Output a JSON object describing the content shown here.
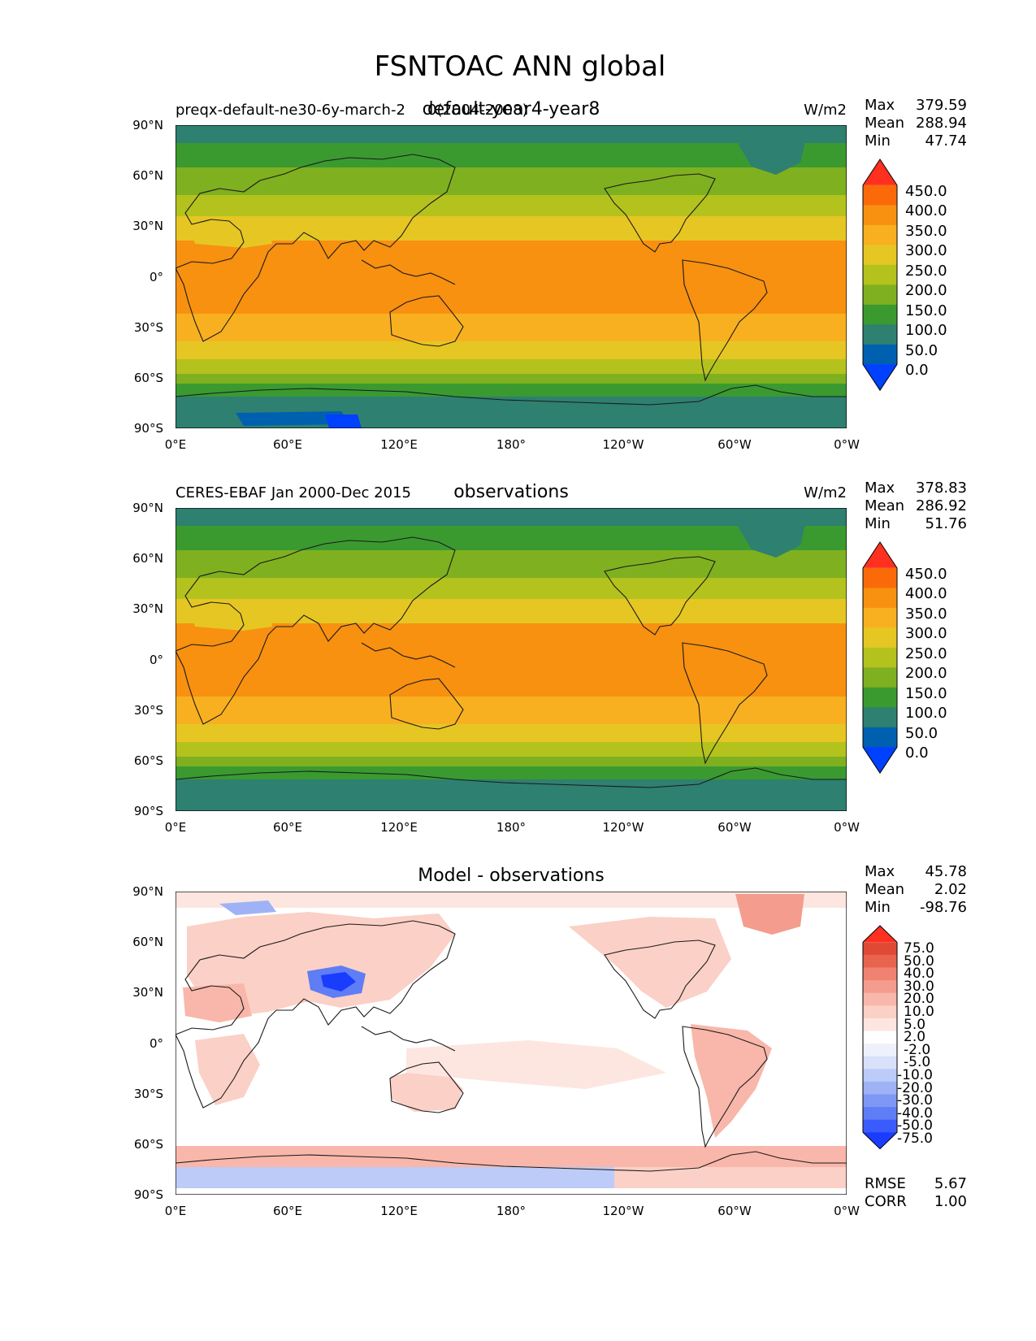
{
  "figure_title": "FSNTOAC ANN global",
  "panels": [
    {
      "id": "model",
      "left_label": "preqx-default-ne30-6y-march-2",
      "left_label_overlap": "0(2004-2008)",
      "center_title": "default-year4-year8",
      "units": "W/m2",
      "stats": {
        "max_label": "Max",
        "max": "379.59",
        "mean_label": "Mean",
        "mean": "288.94",
        "min_label": "Min",
        "min": "47.74"
      },
      "colorbar_labels": [
        "450.0",
        "400.0",
        "350.0",
        "300.0",
        "250.0",
        "200.0",
        "150.0",
        "100.0",
        "50.0",
        "0.0"
      ]
    },
    {
      "id": "obs",
      "left_label": "CERES-EBAF Jan 2000-Dec 2015",
      "center_title": "observations",
      "units": "W/m2",
      "stats": {
        "max_label": "Max",
        "max": "378.83",
        "mean_label": "Mean",
        "mean": "286.92",
        "min_label": "Min",
        "min": "51.76"
      },
      "colorbar_labels": [
        "450.0",
        "400.0",
        "350.0",
        "300.0",
        "250.0",
        "200.0",
        "150.0",
        "100.0",
        "50.0",
        "0.0"
      ]
    },
    {
      "id": "diff",
      "center_title": "Model - observations",
      "stats": {
        "max_label": "Max",
        "max": "45.78",
        "mean_label": "Mean",
        "mean": "2.02",
        "min_label": "Min",
        "min": "-98.76"
      },
      "colorbar_labels": [
        "75.0",
        "50.0",
        "40.0",
        "30.0",
        "20.0",
        "10.0",
        "5.0",
        "2.0",
        "-2.0",
        "-5.0",
        "-10.0",
        "-20.0",
        "-30.0",
        "-40.0",
        "-50.0",
        "-75.0"
      ],
      "rmse_label": "RMSE",
      "rmse": "5.67",
      "corr_label": "CORR",
      "corr": "1.00"
    }
  ],
  "lat_ticks": [
    "90°N",
    "60°N",
    "30°N",
    "0°",
    "30°S",
    "60°S",
    "90°S"
  ],
  "lon_ticks": [
    "0°E",
    "60°E",
    "120°E",
    "180°",
    "120°W",
    "60°W",
    "0°W"
  ],
  "colors": {
    "field_levels": [
      "#0040ff",
      "#0060b0",
      "#2e8070",
      "#3a9a30",
      "#7fb020",
      "#b4c21e",
      "#e6c623",
      "#f8b020",
      "#f89010",
      "#fb6a08",
      "#ff3020"
    ],
    "diff_levels": [
      "#1a3cff",
      "#3a5cff",
      "#5f7df5",
      "#7f98f5",
      "#9eb2f5",
      "#bccbf7",
      "#d8e0fa",
      "#eef1fc",
      "#ffffff",
      "#fde6e0",
      "#fbd0c6",
      "#f8b7aa",
      "#f49d8f",
      "#ef8271",
      "#e8644f",
      "#e04a35",
      "#ff3020"
    ],
    "coast": "#1a1a1a"
  }
}
